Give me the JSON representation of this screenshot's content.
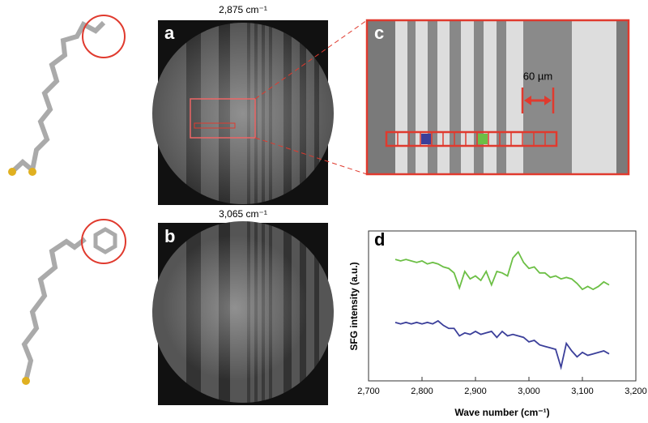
{
  "panels": {
    "a": {
      "label": "a",
      "title": "2,875 cm⁻¹"
    },
    "b": {
      "label": "b",
      "title": "3,065 cm⁻¹"
    },
    "c": {
      "label": "c",
      "scale": "60 µm"
    }
  },
  "chart_data": {
    "type": "line",
    "label": "d",
    "xlabel": "Wave number (cm⁻¹)",
    "ylabel": "SFG intensity (a.u.)",
    "xlim": [
      2700,
      3200
    ],
    "ylim": [
      0,
      10
    ],
    "xticks": [
      {
        "value": 2700,
        "label": "2,700"
      },
      {
        "value": 2800,
        "label": "2,800"
      },
      {
        "value": 2900,
        "label": "2,900"
      },
      {
        "value": 3000,
        "label": "3,000"
      },
      {
        "value": 3100,
        "label": "3,100"
      },
      {
        "value": 3200,
        "label": "3,200"
      }
    ],
    "x": [
      2750,
      2760,
      2770,
      2780,
      2790,
      2800,
      2810,
      2820,
      2830,
      2840,
      2850,
      2860,
      2870,
      2880,
      2890,
      2900,
      2910,
      2920,
      2930,
      2940,
      2950,
      2960,
      2970,
      2980,
      2990,
      3000,
      3010,
      3020,
      3030,
      3040,
      3050,
      3060,
      3070,
      3080,
      3090,
      3100,
      3110,
      3120,
      3130,
      3140,
      3150
    ],
    "series": [
      {
        "color": "#6cbf45",
        "values": [
          8.1,
          8.0,
          8.1,
          8.0,
          7.9,
          8.0,
          7.8,
          7.9,
          7.8,
          7.6,
          7.5,
          7.2,
          6.2,
          7.3,
          6.8,
          7.0,
          6.7,
          7.3,
          6.4,
          7.3,
          7.2,
          7.0,
          8.2,
          8.6,
          7.9,
          7.5,
          7.6,
          7.2,
          7.2,
          6.9,
          7.0,
          6.8,
          6.9,
          6.8,
          6.5,
          6.1,
          6.3,
          6.1,
          6.3,
          6.6,
          6.4
        ]
      },
      {
        "color": "#3b3f9a",
        "values": [
          3.9,
          3.8,
          3.9,
          3.8,
          3.9,
          3.8,
          3.9,
          3.8,
          4.0,
          3.7,
          3.5,
          3.5,
          3.0,
          3.2,
          3.1,
          3.3,
          3.1,
          3.2,
          3.3,
          2.9,
          3.3,
          3.0,
          3.1,
          3.0,
          2.9,
          2.6,
          2.7,
          2.4,
          2.3,
          2.2,
          2.1,
          0.9,
          2.5,
          2.0,
          1.6,
          1.9,
          1.7,
          1.8,
          1.9,
          2.0,
          1.8
        ]
      }
    ]
  }
}
